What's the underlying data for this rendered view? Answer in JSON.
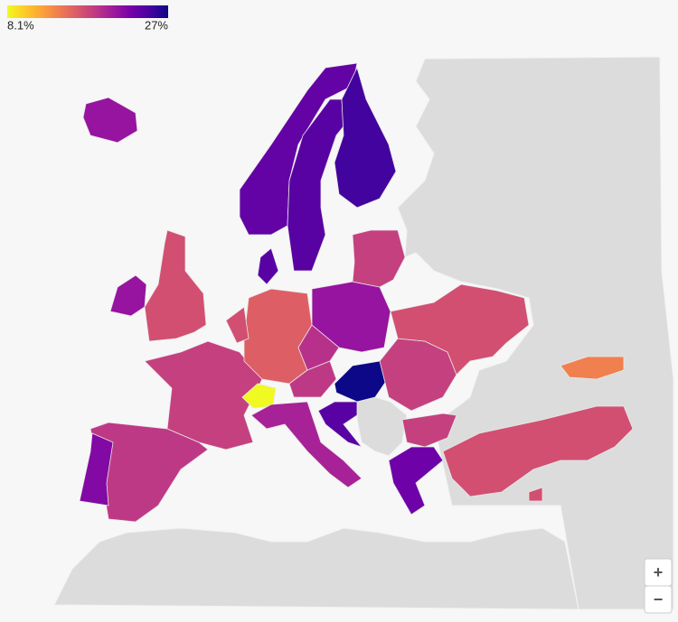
{
  "chart_data": {
    "type": "choropleth",
    "colorscale": [
      "#f0f921",
      "#fdca26",
      "#fb9f3a",
      "#ed7953",
      "#d8576b",
      "#bd3786",
      "#9c179e",
      "#7201a8",
      "#46039f",
      "#0d0887"
    ],
    "zlim": [
      8.1,
      27
    ],
    "zticks": [
      {
        "value": 8.1,
        "label": "8.1%"
      },
      {
        "value": 27,
        "label": "27%"
      }
    ],
    "values": [
      21,
      23.5,
      24,
      25,
      24,
      17,
      21,
      18,
      18.5,
      22,
      16,
      8.1,
      20,
      21,
      19,
      18.5,
      27,
      24,
      18,
      18,
      23,
      17,
      17,
      18,
      14,
      17,
      17
    ]
  },
  "controls": {
    "zoom_in": "+",
    "zoom_out": "−"
  }
}
